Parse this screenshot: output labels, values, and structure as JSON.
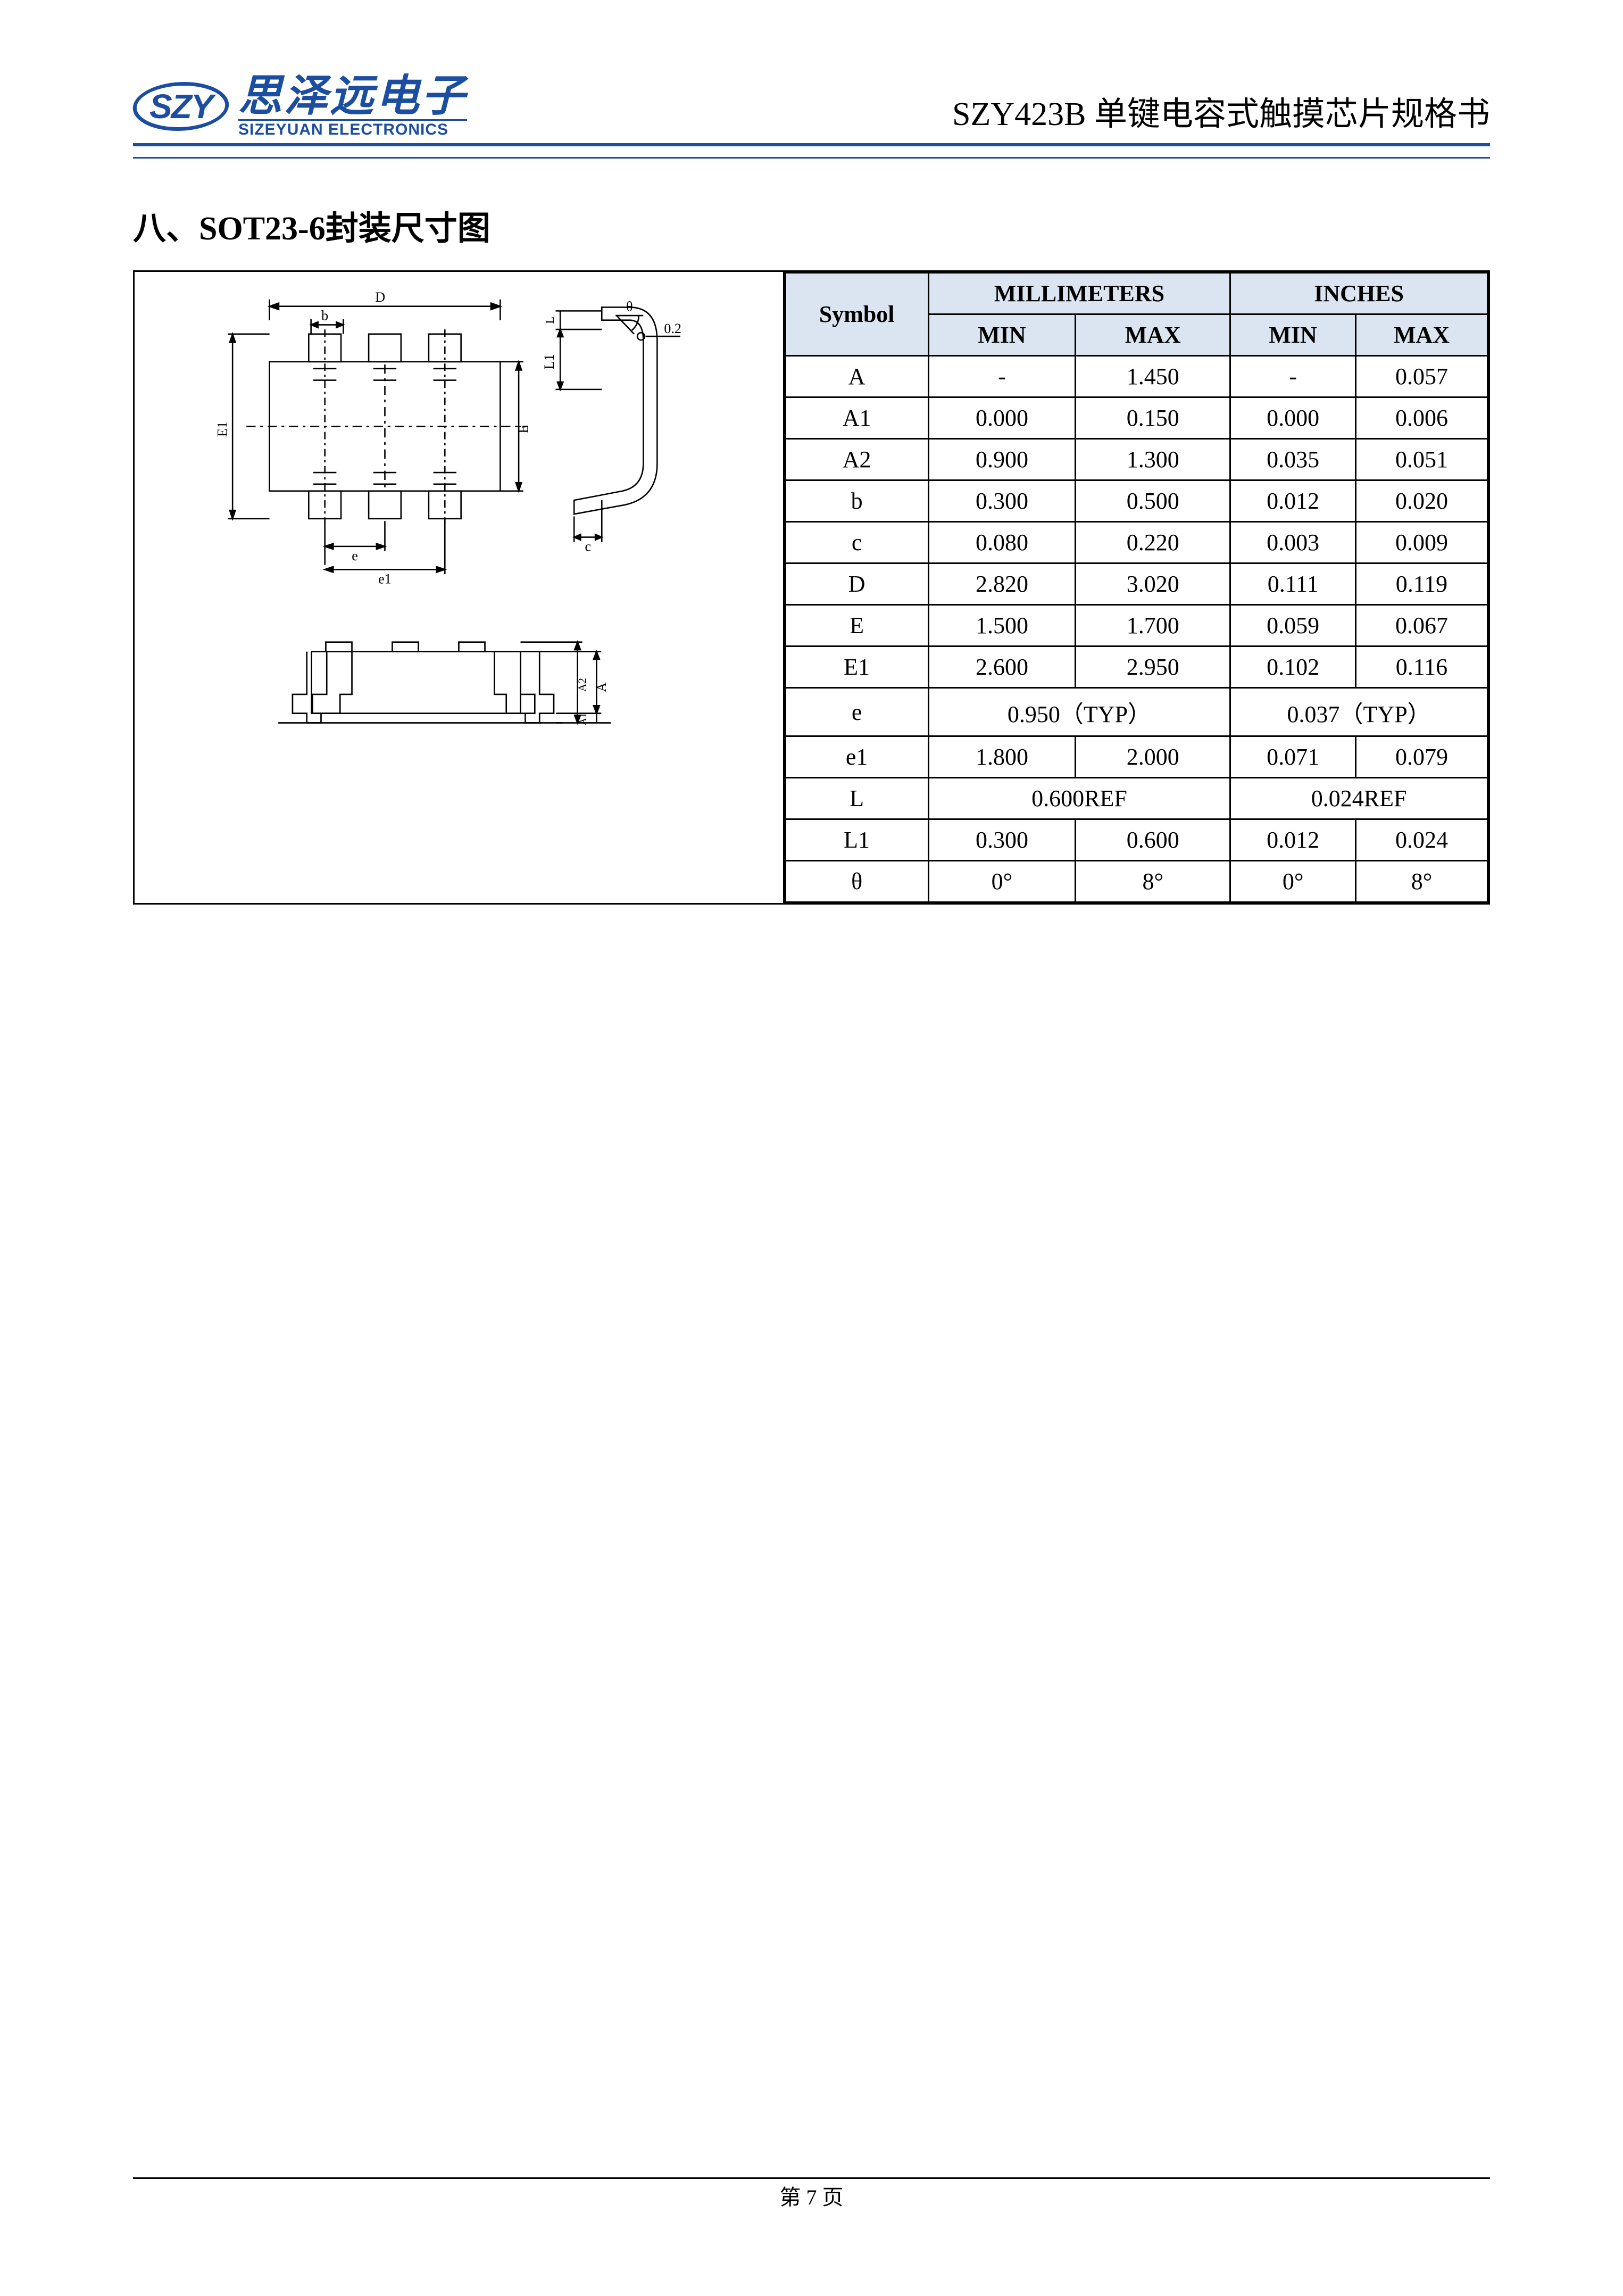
{
  "header": {
    "logo_abbr": "SZY",
    "logo_cn": "思泽远电子",
    "logo_en": "SIZEYUAN ELECTRONICS",
    "doc_title": "SZY423B  单键电容式触摸芯片规格书"
  },
  "section": {
    "title": "八、SOT23-6封装尺寸图"
  },
  "table": {
    "col_symbol": "Symbol",
    "group_mm": "MILLIMETERS",
    "group_in": "INCHES",
    "col_min": "MIN",
    "col_max": "MAX",
    "rows": [
      {
        "sym": "A",
        "mm_min": "-",
        "mm_max": "1.450",
        "in_min": "-",
        "in_max": "0.057",
        "span": false
      },
      {
        "sym": "A1",
        "mm_min": "0.000",
        "mm_max": "0.150",
        "in_min": "0.000",
        "in_max": "0.006",
        "span": false
      },
      {
        "sym": "A2",
        "mm_min": "0.900",
        "mm_max": "1.300",
        "in_min": "0.035",
        "in_max": "0.051",
        "span": false
      },
      {
        "sym": "b",
        "mm_min": "0.300",
        "mm_max": "0.500",
        "in_min": "0.012",
        "in_max": "0.020",
        "span": false
      },
      {
        "sym": "c",
        "mm_min": "0.080",
        "mm_max": "0.220",
        "in_min": "0.003",
        "in_max": "0.009",
        "span": false
      },
      {
        "sym": "D",
        "mm_min": "2.820",
        "mm_max": "3.020",
        "in_min": "0.111",
        "in_max": "0.119",
        "span": false
      },
      {
        "sym": "E",
        "mm_min": "1.500",
        "mm_max": "1.700",
        "in_min": "0.059",
        "in_max": "0.067",
        "span": false
      },
      {
        "sym": "E1",
        "mm_min": "2.600",
        "mm_max": "2.950",
        "in_min": "0.102",
        "in_max": "0.116",
        "span": false
      },
      {
        "sym": "e",
        "mm_span": "0.950（TYP）",
        "in_span": "0.037（TYP）",
        "span": true
      },
      {
        "sym": "e1",
        "mm_min": "1.800",
        "mm_max": "2.000",
        "in_min": "0.071",
        "in_max": "0.079",
        "span": false
      },
      {
        "sym": "L",
        "mm_span": "0.600REF",
        "in_span": "0.024REF",
        "span": true
      },
      {
        "sym": "L1",
        "mm_min": "0.300",
        "mm_max": "0.600",
        "in_min": "0.012",
        "in_max": "0.024",
        "span": false
      },
      {
        "sym": "θ",
        "mm_min": "0°",
        "mm_max": "8°",
        "in_min": "0°",
        "in_max": "8°",
        "span": false
      }
    ]
  },
  "diagram": {
    "labels": {
      "D": "D",
      "b": "b",
      "E1": "E1",
      "E": "E",
      "e": "e",
      "e1": "e1",
      "theta": "θ",
      "point2": "0.2",
      "c": "c",
      "L": "L",
      "L1": "L1",
      "A": "A",
      "A1": "A1",
      "A2": "A2"
    },
    "colors": {
      "stroke": "#000000",
      "fill": "#ffffff"
    }
  },
  "footer": {
    "page_label": "第 7 页"
  }
}
